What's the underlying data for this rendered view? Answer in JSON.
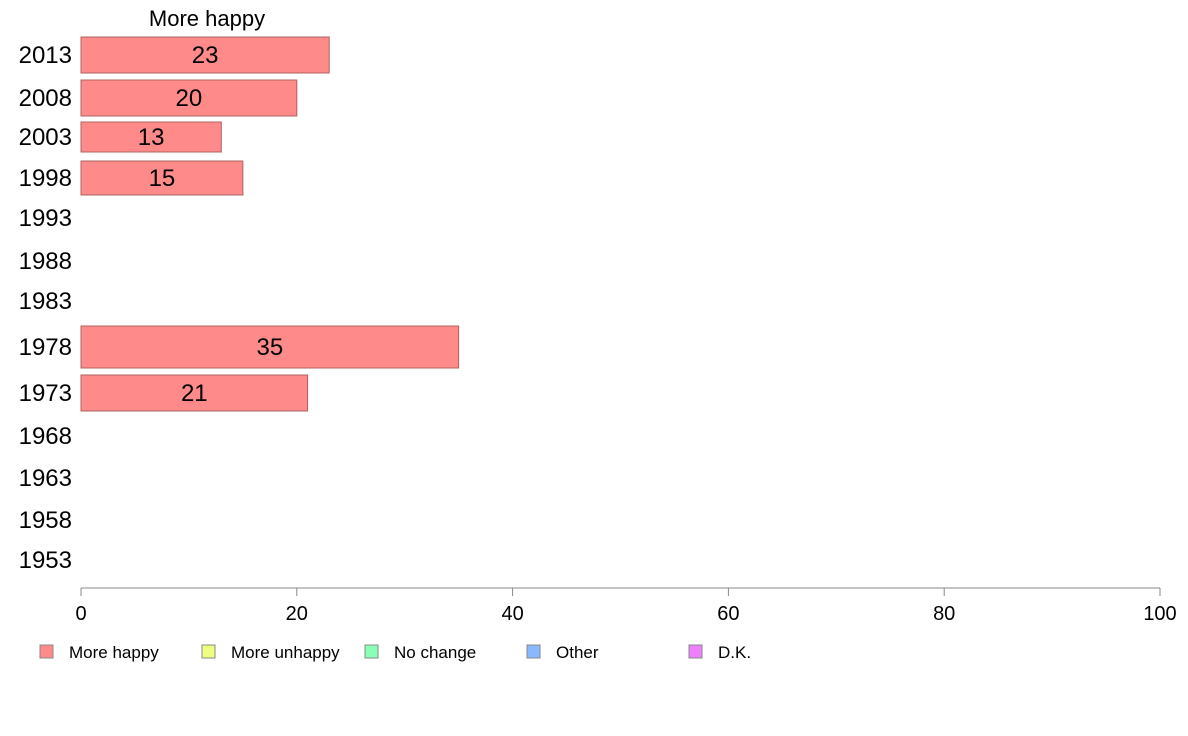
{
  "chart_data": {
    "type": "bar",
    "orientation": "horizontal",
    "column_title": "More happy",
    "categories": [
      "2013",
      "2008",
      "2003",
      "1998",
      "1993",
      "1988",
      "1983",
      "1978",
      "1973",
      "1968",
      "1963",
      "1958",
      "1953"
    ],
    "series": [
      {
        "name": "More happy",
        "values": [
          23,
          20,
          13,
          15,
          null,
          null,
          null,
          35,
          21,
          null,
          null,
          null,
          null
        ]
      }
    ],
    "data_labels": [
      "23",
      "20",
      "13",
      "15",
      "",
      "",
      "",
      "35",
      "21",
      "",
      "",
      "",
      ""
    ],
    "xlim": [
      0,
      100
    ],
    "xticks": [
      "0",
      "20",
      "40",
      "60",
      "80",
      "100"
    ],
    "grid": false,
    "legend": {
      "placement": "bottom",
      "items": [
        {
          "label": "More happy",
          "color": "#ff8a8a"
        },
        {
          "label": "More unhappy",
          "color": "#eeff80"
        },
        {
          "label": "No change",
          "color": "#8affb8"
        },
        {
          "label": "Other",
          "color": "#8ab8ff"
        },
        {
          "label": "D.K.",
          "color": "#ee80ff"
        }
      ]
    },
    "bar_color": "#ff8a8a",
    "bar_border": "#b06060",
    "axis_color": "#888888"
  }
}
